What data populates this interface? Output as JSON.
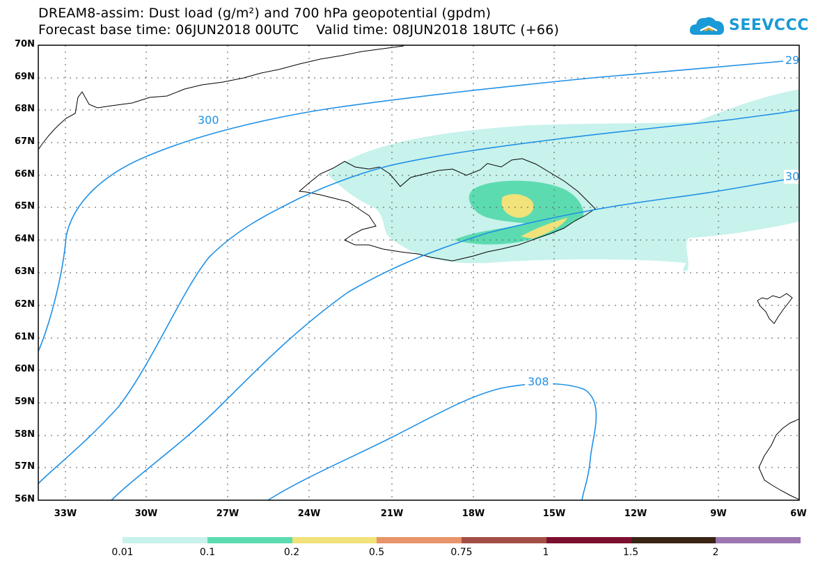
{
  "header": {
    "title_line1": "DREAM8-assim: Dust load (g/m²) and 700 hPa geopotential (gpdm)",
    "title_line2": "Forecast base time: 06JUN2018 00UTC    Valid time: 08JUN2018 18UTC (+66)"
  },
  "logo": {
    "text": "SEEVCCC",
    "icon": "cloud-icon",
    "color": "#1a9ad6"
  },
  "map": {
    "lat_labels": [
      "70N",
      "69N",
      "68N",
      "67N",
      "66N",
      "65N",
      "64N",
      "63N",
      "62N",
      "61N",
      "60N",
      "59N",
      "58N",
      "57N",
      "56N"
    ],
    "lon_labels": [
      "33W",
      "30W",
      "27W",
      "24W",
      "21W",
      "18W",
      "15W",
      "12W",
      "9W",
      "6W"
    ],
    "contour_labels": [
      "29",
      "300",
      "30",
      "308"
    ],
    "contour_color": "#1e90e6",
    "dust_colors": {
      "c001": "#c8f2ec",
      "c01": "#5ddbb0",
      "c02": "#f1e27a"
    }
  },
  "legend": {
    "colors": [
      "#c8f2ec",
      "#5ddbb0",
      "#f1e27a",
      "#e8946a",
      "#a34f47",
      "#7c0f2f",
      "#3a2414",
      "#9b76b0"
    ],
    "labels": [
      "0.01",
      "0.1",
      "0.2",
      "0.5",
      "0.75",
      "1",
      "1.5",
      "2"
    ]
  }
}
